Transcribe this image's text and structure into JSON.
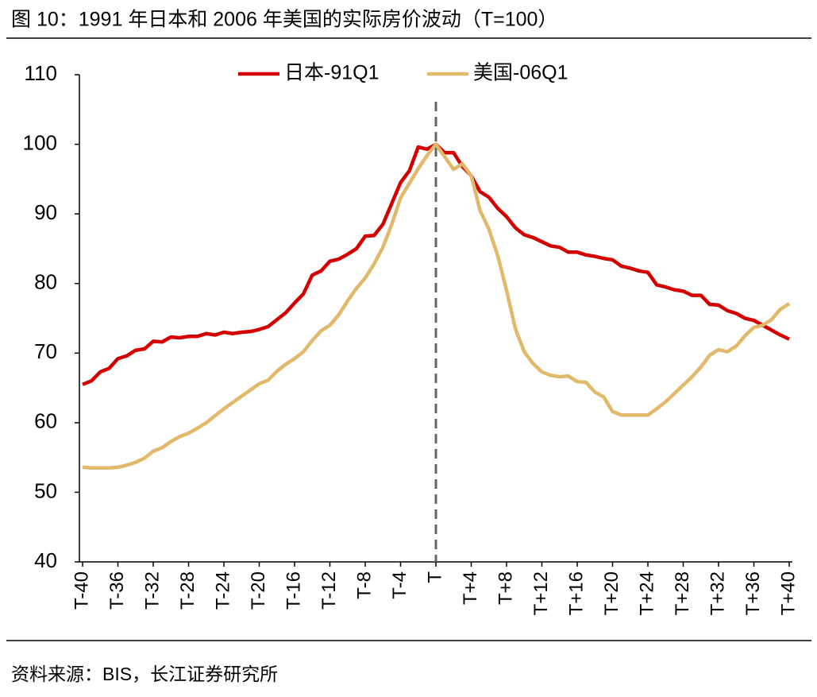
{
  "chart_data": {
    "type": "line",
    "title": "图 10：1991 年日本和 2006 年美国的实际房价波动（T=100）",
    "source": "资料来源：BIS，长江证券研究所",
    "categories": [
      "T-40",
      null,
      null,
      null,
      "T-36",
      null,
      null,
      null,
      "T-32",
      null,
      null,
      null,
      "T-28",
      null,
      null,
      null,
      "T-24",
      null,
      null,
      null,
      "T-20",
      null,
      null,
      null,
      "T-16",
      null,
      null,
      null,
      "T-12",
      null,
      null,
      null,
      "T-8",
      null,
      null,
      null,
      "T-4",
      null,
      null,
      null,
      "T",
      null,
      null,
      null,
      "T+4",
      null,
      null,
      null,
      "T+8",
      null,
      null,
      null,
      "T+12",
      null,
      null,
      null,
      "T+16",
      null,
      null,
      null,
      "T+20",
      null,
      null,
      null,
      "T+24",
      null,
      null,
      null,
      "T+28",
      null,
      null,
      null,
      "T+32",
      null,
      null,
      null,
      "T+36",
      null,
      null,
      null,
      "T+40"
    ],
    "series": [
      {
        "name": "日本-91Q1",
        "color": "#d40000",
        "values": [
          65.5,
          66,
          67.3,
          67.8,
          69.2,
          69.6,
          70.4,
          70.6,
          71.7,
          71.6,
          72.3,
          72.2,
          72.4,
          72.4,
          72.8,
          72.6,
          73,
          72.8,
          73,
          73.1,
          73.4,
          73.8,
          74.8,
          75.8,
          77.2,
          78.5,
          81.2,
          81.8,
          83.2,
          83.5,
          84.2,
          85,
          86.8,
          86.9,
          88.5,
          91.5,
          94.5,
          96.2,
          99.6,
          99.3,
          100,
          98.8,
          98.8,
          96.8,
          95.5,
          93.2,
          92.4,
          90.8,
          89.6,
          88,
          87,
          86.6,
          86,
          85.4,
          85.2,
          84.5,
          84.5,
          84.1,
          83.9,
          83.6,
          83.4,
          82.5,
          82.2,
          81.8,
          81.6,
          79.8,
          79.5,
          79.1,
          78.9,
          78.3,
          78.3,
          77,
          76.9,
          76.1,
          75.7,
          75,
          74.7,
          74,
          73.3,
          72.6,
          72
        ]
      },
      {
        "name": "美国-06Q1",
        "color": "#e2b86a",
        "values": [
          53.6,
          53.5,
          53.5,
          53.5,
          53.6,
          53.9,
          54.3,
          54.9,
          55.9,
          56.4,
          57.3,
          58,
          58.5,
          59.2,
          60,
          61,
          62,
          62.9,
          63.8,
          64.7,
          65.6,
          66.1,
          67.4,
          68.4,
          69.2,
          70.2,
          71.8,
          73.2,
          74,
          75.5,
          77.5,
          79.3,
          80.8,
          82.8,
          85.2,
          88.5,
          92.3,
          94.4,
          96.5,
          98.4,
          100,
          98.2,
          96.4,
          97.2,
          95.5,
          90.5,
          87.8,
          84,
          79,
          73.5,
          70.2,
          68.5,
          67.3,
          66.8,
          66.6,
          66.7,
          65.9,
          65.8,
          64.4,
          63.7,
          61.6,
          61.1,
          61.1,
          61.1,
          61.1,
          62,
          63,
          64.2,
          65.4,
          66.6,
          68,
          69.7,
          70.5,
          70.2,
          71,
          72.5,
          73.7,
          74,
          74.8,
          76.3,
          77.1
        ]
      }
    ],
    "ylim": [
      40,
      110
    ],
    "yticks": [
      40,
      50,
      60,
      70,
      80,
      90,
      100,
      110
    ],
    "legend": "top"
  }
}
